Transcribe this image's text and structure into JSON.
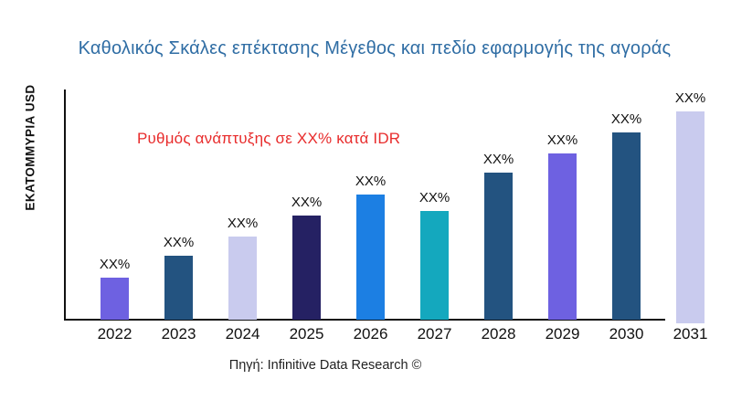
{
  "title": {
    "text": "Καθολικός Σκάλες επέκτασης Μέγεθος και πεδίο εφαρμογής της αγοράς",
    "color": "#2F6DA4"
  },
  "y_axis_label": "ΕΚΑΤΟΜΜΥΡΙΑ USD",
  "annotation": {
    "text": "Ρυθμός ανάπτυξης σε XX% κατά IDR",
    "color": "#E82C2C"
  },
  "source": "Πηγή: Infinitive Data Research ©",
  "chart_data": {
    "type": "bar",
    "title": "Καθολικός Σκάλες επέκτασης Μέγεθος και πεδίο εφαρμογής της αγοράς",
    "xlabel": "",
    "ylabel": "ΕΚΑΤΟΜΜΥΡΙΑ USD",
    "categories": [
      "2022",
      "2023",
      "2024",
      "2025",
      "2026",
      "2027",
      "2028",
      "2029",
      "2030",
      "2031"
    ],
    "values": [
      46,
      70,
      91,
      114,
      137,
      119,
      161,
      182,
      205,
      232
    ],
    "value_note": "axis unlabeled; values are estimated relative bar heights (px), data labels show XX%",
    "ylim": [
      0,
      252
    ],
    "bar_labels": [
      "XX%",
      "XX%",
      "XX%",
      "XX%",
      "XX%",
      "XX%",
      "XX%",
      "XX%",
      "XX%",
      "XX%"
    ],
    "bar_colors": [
      "#6E61E1",
      "#235380",
      "#C9CBEE",
      "#252163",
      "#1C7FE3",
      "#14A8BE",
      "#235380",
      "#6E61E1",
      "#235380",
      "#C9CBEE"
    ],
    "grid": false,
    "legend": false,
    "annotations": [
      "Ρυθμός ανάπτυξης σε XX% κατά IDR"
    ]
  }
}
